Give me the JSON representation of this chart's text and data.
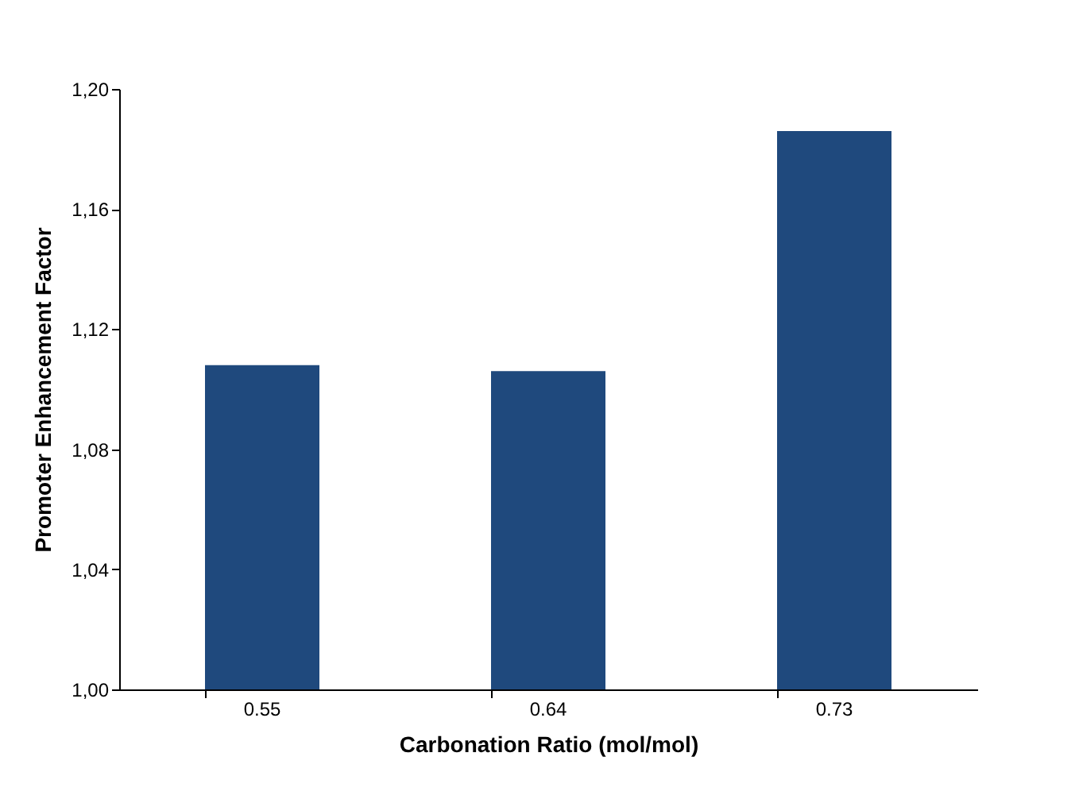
{
  "chart_data": {
    "type": "bar",
    "xlabel": "Carbonation Ratio (mol/mol)",
    "ylabel": "Promoter Enhancement Factor",
    "categories": [
      "0.55",
      "0.64",
      "0.73"
    ],
    "values": [
      1.108,
      1.106,
      1.186
    ],
    "color": "#1f497d",
    "ylim": [
      1.0,
      1.2
    ],
    "yticks": [
      {
        "value": 1.0,
        "label": "1,00"
      },
      {
        "value": 1.04,
        "label": "1,04"
      },
      {
        "value": 1.08,
        "label": "1,08"
      },
      {
        "value": 1.12,
        "label": "1,12"
      },
      {
        "value": 1.16,
        "label": "1,16"
      },
      {
        "value": 1.2,
        "label": "1,20"
      }
    ],
    "grid": false
  }
}
